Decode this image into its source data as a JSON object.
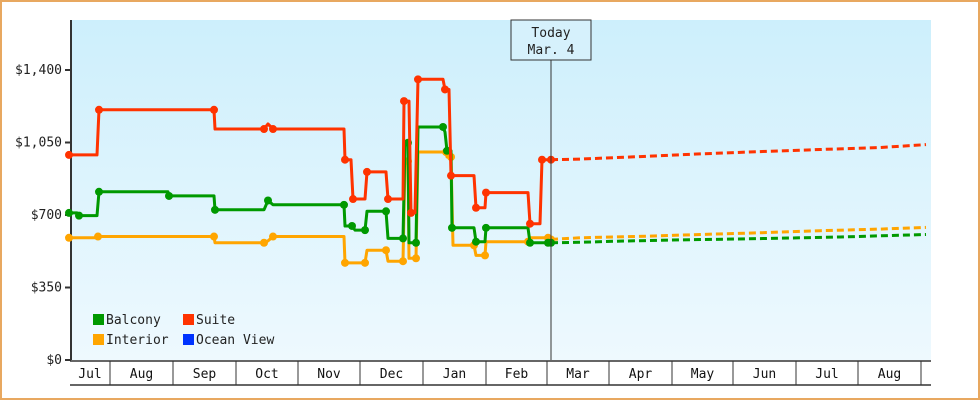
{
  "chart_data": {
    "type": "line",
    "title": "",
    "xlabel": "",
    "ylabel": "",
    "ylim": [
      0,
      1600
    ],
    "y_ticks": [
      {
        "value": 0,
        "label": "$0"
      },
      {
        "value": 350,
        "label": "$350"
      },
      {
        "value": 700,
        "label": "$700"
      },
      {
        "value": 1050,
        "label": "$1,050"
      },
      {
        "value": 1400,
        "label": "$1,400"
      }
    ],
    "months": [
      "Jul",
      "Aug",
      "Sep",
      "Oct",
      "Nov",
      "Dec",
      "Jan",
      "Feb",
      "Mar",
      "Apr",
      "May",
      "Jun",
      "Jul",
      "Aug"
    ],
    "today_marker": {
      "line1": "Today",
      "line2": "Mar. 4"
    },
    "legend": [
      {
        "name": "Balcony",
        "color": "#009900"
      },
      {
        "name": "Suite",
        "color": "#ff3300"
      },
      {
        "name": "Interior",
        "color": "#ffa500"
      },
      {
        "name": "Ocean View",
        "color": "#0033ff"
      }
    ],
    "series": [
      {
        "name": "Interior",
        "color": "#ffa500",
        "history": [
          [
            69,
            590
          ],
          [
            97,
            590
          ],
          [
            98,
            596
          ],
          [
            169,
            596
          ],
          [
            214,
            596
          ],
          [
            215,
            566
          ],
          [
            264,
            566
          ],
          [
            268,
            575
          ],
          [
            273,
            596
          ],
          [
            344,
            596
          ],
          [
            345,
            469
          ],
          [
            353,
            469
          ],
          [
            365,
            469
          ],
          [
            367,
            530
          ],
          [
            386,
            530
          ],
          [
            388,
            477
          ],
          [
            403,
            477
          ],
          [
            405,
            960
          ],
          [
            408,
            960
          ],
          [
            409,
            491
          ],
          [
            416,
            491
          ],
          [
            418,
            1004
          ],
          [
            446,
            1004
          ],
          [
            447,
            980
          ],
          [
            451,
            980
          ],
          [
            453,
            554
          ],
          [
            474,
            554
          ],
          [
            476,
            505
          ],
          [
            485,
            505
          ],
          [
            486,
            571
          ],
          [
            528,
            571
          ],
          [
            530,
            590
          ],
          [
            548,
            590
          ],
          [
            551,
            582
          ]
        ],
        "forecast": [
          [
            551,
            582
          ],
          [
            580,
            590
          ],
          [
            650,
            598
          ],
          [
            700,
            606
          ],
          [
            760,
            614
          ],
          [
            820,
            624
          ],
          [
            880,
            632
          ],
          [
            926,
            640
          ]
        ]
      },
      {
        "name": "Balcony",
        "color": "#009900",
        "history": [
          [
            69,
            710
          ],
          [
            77,
            710
          ],
          [
            79,
            697
          ],
          [
            97,
            697
          ],
          [
            99,
            812
          ],
          [
            168,
            812
          ],
          [
            169,
            792
          ],
          [
            214,
            792
          ],
          [
            215,
            725
          ],
          [
            264,
            725
          ],
          [
            268,
            770
          ],
          [
            273,
            749
          ],
          [
            344,
            749
          ],
          [
            345,
            647
          ],
          [
            352,
            647
          ],
          [
            355,
            627
          ],
          [
            365,
            627
          ],
          [
            367,
            718
          ],
          [
            386,
            718
          ],
          [
            388,
            587
          ],
          [
            403,
            587
          ],
          [
            405,
            1049
          ],
          [
            408,
            1049
          ],
          [
            409,
            566
          ],
          [
            416,
            566
          ],
          [
            418,
            1125
          ],
          [
            443,
            1125
          ],
          [
            445,
            1100
          ],
          [
            447,
            1010
          ],
          [
            451,
            1010
          ],
          [
            452,
            638
          ],
          [
            474,
            638
          ],
          [
            476,
            571
          ],
          [
            485,
            571
          ],
          [
            486,
            638
          ],
          [
            528,
            638
          ],
          [
            530,
            566
          ],
          [
            540,
            566
          ],
          [
            548,
            566
          ],
          [
            551,
            566
          ]
        ],
        "forecast": [
          [
            551,
            566
          ],
          [
            580,
            568
          ],
          [
            620,
            574
          ],
          [
            680,
            580
          ],
          [
            760,
            586
          ],
          [
            840,
            594
          ],
          [
            926,
            606
          ]
        ]
      },
      {
        "name": "Suite",
        "color": "#ff3300",
        "history": [
          [
            69,
            990
          ],
          [
            97,
            990
          ],
          [
            99,
            1208
          ],
          [
            169,
            1208
          ],
          [
            214,
            1208
          ],
          [
            215,
            1115
          ],
          [
            264,
            1115
          ],
          [
            268,
            1140
          ],
          [
            273,
            1115
          ],
          [
            344,
            1115
          ],
          [
            345,
            967
          ],
          [
            351,
            967
          ],
          [
            353,
            777
          ],
          [
            365,
            777
          ],
          [
            367,
            908
          ],
          [
            386,
            908
          ],
          [
            388,
            777
          ],
          [
            403,
            777
          ],
          [
            404,
            1250
          ],
          [
            409,
            1250
          ],
          [
            411,
            710
          ],
          [
            415,
            710
          ],
          [
            418,
            1355
          ],
          [
            443,
            1355
          ],
          [
            445,
            1306
          ],
          [
            449,
            1306
          ],
          [
            451,
            890
          ],
          [
            474,
            890
          ],
          [
            476,
            735
          ],
          [
            485,
            735
          ],
          [
            486,
            808
          ],
          [
            528,
            808
          ],
          [
            530,
            658
          ],
          [
            540,
            658
          ],
          [
            542,
            967
          ],
          [
            551,
            967
          ]
        ],
        "forecast": [
          [
            551,
            967
          ],
          [
            580,
            970
          ],
          [
            640,
            982
          ],
          [
            700,
            995
          ],
          [
            760,
            1006
          ],
          [
            820,
            1016
          ],
          [
            880,
            1026
          ],
          [
            926,
            1040
          ]
        ]
      }
    ]
  }
}
